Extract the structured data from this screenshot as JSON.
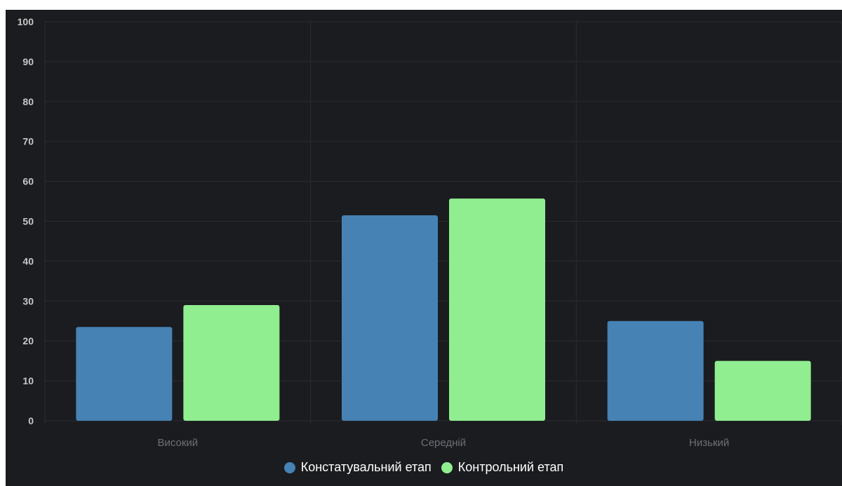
{
  "chart_data": {
    "type": "bar",
    "categories": [
      "Високий",
      "Середній",
      "Низький"
    ],
    "series": [
      {
        "name": "Констатувальний етап",
        "values": [
          23.5,
          51.5,
          25
        ],
        "color": "#4682b4"
      },
      {
        "name": "Контрольний етап",
        "values": [
          29,
          55.7,
          15
        ],
        "color": "#90ee90"
      }
    ],
    "ylim": [
      0,
      100
    ],
    "yticks": [
      "0",
      "10",
      "20",
      "30",
      "40",
      "50",
      "60",
      "70",
      "80",
      "90",
      "100"
    ],
    "grid": true,
    "legend_position": "bottom",
    "colors": {
      "background": "#1b1c20",
      "grid": "#2b2c31",
      "tick_text": "#c8c8c8",
      "category_text": "#6e6f75"
    }
  }
}
